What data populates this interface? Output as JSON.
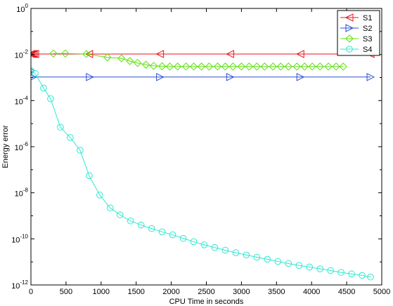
{
  "chart_data": {
    "type": "line",
    "xlabel": "CPU Time in seconds",
    "ylabel": "Energy error",
    "xlim": [
      0,
      5000
    ],
    "ylim": [
      1e-12,
      1
    ],
    "yscale": "log",
    "xticks": [
      0,
      500,
      1000,
      1500,
      2000,
      2500,
      3000,
      3500,
      4000,
      4500,
      5000
    ],
    "yticks": [
      {
        "value": 1.0,
        "base": "10",
        "exp": "0"
      },
      {
        "value": 0.01,
        "base": "10",
        "exp": "-2"
      },
      {
        "value": 0.0001,
        "base": "10",
        "exp": "-4"
      },
      {
        "value": 1e-06,
        "base": "10",
        "exp": "-6"
      },
      {
        "value": 1e-08,
        "base": "10",
        "exp": "-8"
      },
      {
        "value": 1e-10,
        "base": "10",
        "exp": "-10"
      },
      {
        "value": 1e-12,
        "base": "10",
        "exp": "-12"
      }
    ],
    "grid": false,
    "legend_position": "top-right",
    "series": [
      {
        "name": "S1",
        "color": "#e8141d",
        "marker": "triangle-left",
        "x": [
          0,
          20,
          40,
          60,
          830,
          1840,
          2840,
          3840,
          4840
        ],
        "y": [
          0.0105,
          0.0105,
          0.0105,
          0.0105,
          0.0105,
          0.0105,
          0.0105,
          0.0105,
          0.0105
        ]
      },
      {
        "name": "S2",
        "color": "#2a4fd6",
        "marker": "triangle-right",
        "x": [
          0,
          30,
          840,
          1840,
          2840,
          3840,
          4840
        ],
        "y": [
          0.002,
          0.00105,
          0.00105,
          0.00105,
          0.00105,
          0.00105,
          0.00105
        ]
      },
      {
        "name": "S3",
        "color": "#5ee00f",
        "marker": "diamond",
        "x": [
          320,
          490,
          790,
          1090,
          1290,
          1410,
          1520,
          1640,
          1750,
          1870,
          1980,
          2090,
          2210,
          2320,
          2430,
          2540,
          2660,
          2770,
          2880,
          3000,
          3110,
          3220,
          3330,
          3450,
          3560,
          3670,
          3790,
          3900,
          4010,
          4120,
          4240,
          4350,
          4450
        ],
        "y": [
          0.011,
          0.011,
          0.0105,
          0.0075,
          0.0068,
          0.0052,
          0.0043,
          0.0036,
          0.0032,
          0.0031,
          0.003,
          0.003,
          0.003,
          0.003,
          0.003,
          0.003,
          0.003,
          0.003,
          0.003,
          0.003,
          0.003,
          0.003,
          0.003,
          0.003,
          0.003,
          0.003,
          0.003,
          0.003,
          0.003,
          0.003,
          0.003,
          0.003,
          0.003
        ]
      },
      {
        "name": "S4",
        "color": "#2ee8d0",
        "marker": "circle",
        "x": [
          0,
          60,
          180,
          280,
          420,
          560,
          700,
          830,
          980,
          1130,
          1270,
          1420,
          1570,
          1720,
          1870,
          2020,
          2170,
          2320,
          2470,
          2620,
          2770,
          2920,
          3070,
          3220,
          3370,
          3520,
          3670,
          3820,
          3970,
          4120,
          4270,
          4420,
          4570,
          4720,
          4840
        ],
        "y": [
          0.002,
          0.0015,
          0.00035,
          0.00012,
          7e-06,
          2.5e-06,
          7e-07,
          5.5e-08,
          8e-09,
          2.2e-09,
          1.1e-09,
          6e-10,
          4e-10,
          2.8e-10,
          2e-10,
          1.5e-10,
          1.05e-10,
          7.5e-11,
          5.5e-11,
          4.2e-11,
          3.2e-11,
          2.5e-11,
          2e-11,
          1.6e-11,
          1.3e-11,
          1.05e-11,
          8.5e-12,
          7e-12,
          6e-12,
          5e-12,
          4.2e-12,
          3.5e-12,
          3e-12,
          2.6e-12,
          2.2e-12
        ]
      }
    ]
  }
}
